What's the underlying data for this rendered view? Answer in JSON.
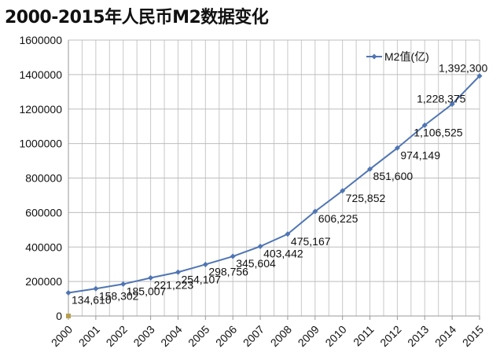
{
  "chart_data": {
    "type": "line",
    "title": "2000-2015年人民币M2数据变化",
    "xlabel": "",
    "ylabel": "",
    "categories": [
      "2000",
      "2001",
      "2002",
      "2003",
      "2004",
      "2005",
      "2006",
      "2007",
      "2008",
      "2009",
      "2010",
      "2011",
      "2012",
      "2013",
      "2014",
      "2015"
    ],
    "series": [
      {
        "name": "M2值(亿)",
        "color": "#4f75b3",
        "values": [
          134610,
          158302,
          185007,
          221223,
          254107,
          298756,
          345604,
          403442,
          475167,
          606225,
          725852,
          851600,
          974149,
          1106525,
          1228375,
          1392300
        ],
        "labels": [
          "134,610",
          "158,302",
          "185,007",
          "221,223",
          "254,107",
          "298,756",
          "345,604",
          "403,442",
          "475,167",
          "606,225",
          "725,852",
          "851,600",
          "974,149",
          "1,106,525",
          "1,228,375",
          "1,392,300"
        ]
      }
    ],
    "ylim": [
      0,
      1600000
    ],
    "yticks": [
      "0",
      "200000",
      "400000",
      "600000",
      "800000",
      "1000000",
      "1200000",
      "1400000",
      "1600000"
    ],
    "grid": true,
    "legend": "top-right"
  }
}
